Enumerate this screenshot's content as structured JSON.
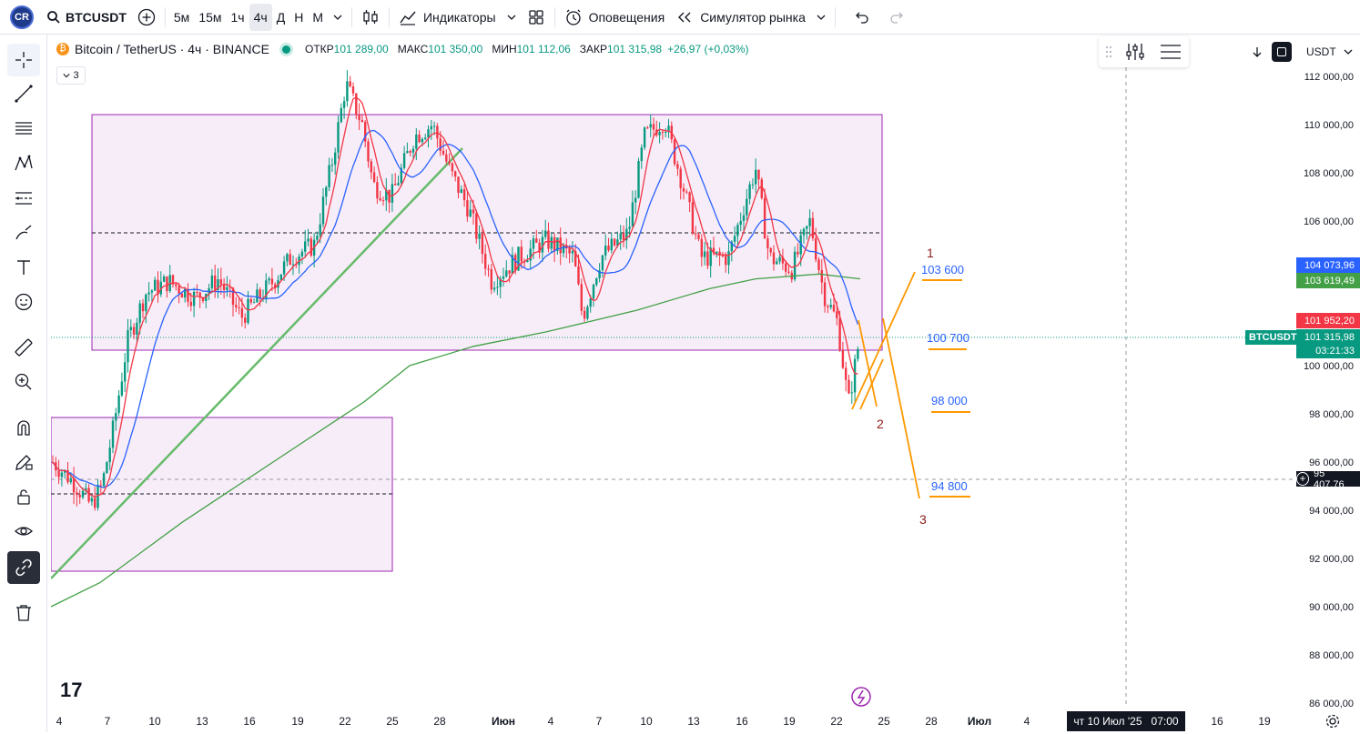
{
  "toolbar": {
    "logo": "CR",
    "symbol": "BTCUSDT",
    "timeframes": [
      "5м",
      "15м",
      "1ч",
      "4ч",
      "Д",
      "Н",
      "М"
    ],
    "active_timeframe": "4ч",
    "indicators_label": "Индикаторы",
    "alerts_label": "Оповещения",
    "replay_label": "Симулятор рынка"
  },
  "legend": {
    "title": "Bitcoin / TetherUS · 4ч · BINANCE",
    "open_label": "ОТКР",
    "open_value": "101 289,00",
    "high_label": "МАКС",
    "high_value": "101 350,00",
    "low_label": "МИН",
    "low_value": "101 112,06",
    "close_label": "ЗАКР",
    "close_value": "101 315,98",
    "change": "+26,97 (+0,03%)",
    "indicators_count": "3"
  },
  "axis_header": {
    "currency": "USDT"
  },
  "price_axis": {
    "ticks": [
      "112 000,00",
      "110 000,00",
      "108 000,00",
      "106 000,00",
      "100 000,00",
      "98 000,00",
      "96 000,00",
      "94 000,00",
      "92 000,00",
      "90 000,00",
      "88 000,00",
      "86 000,00"
    ],
    "ma_blue_value": "104 073,96",
    "ma_green_value": "103 619,49",
    "ma_red_value": "101 952,20",
    "last_price": "101 315,98",
    "countdown": "03:21:33",
    "crosshair_price": "95 407,76",
    "price_tag": "BTCUSDT",
    "colors": {
      "blue": "#2962ff",
      "green": "#43a047",
      "red": "#f23645",
      "last": "#089981",
      "dark": "#131722"
    }
  },
  "time_axis": {
    "ticks": [
      "4",
      "7",
      "10",
      "13",
      "16",
      "19",
      "22",
      "25",
      "28",
      "Июн",
      "4",
      "7",
      "10",
      "13",
      "16",
      "19",
      "22",
      "25",
      "28",
      "Июл",
      "4",
      "16",
      "19"
    ],
    "crosshair_date": "чт 10 Июл '25",
    "crosshair_time": "07:00"
  },
  "annotations": {
    "target_1": "103 600",
    "target_2": "100 700",
    "target_3": "98 000",
    "target_4": "94 800",
    "wave_1": "1",
    "wave_2": "2",
    "wave_3": "3"
  }
}
